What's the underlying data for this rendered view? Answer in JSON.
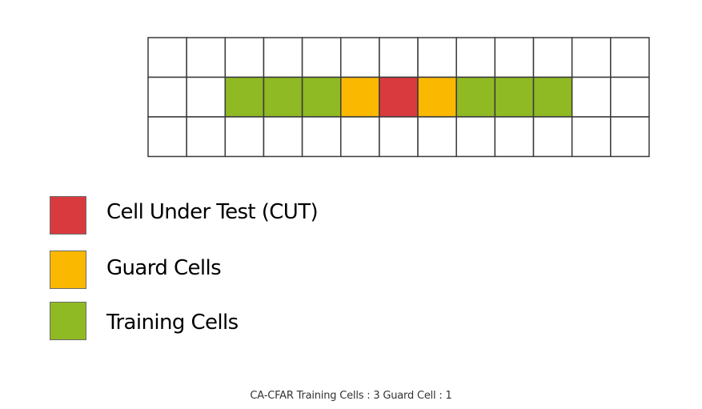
{
  "colors": {
    "cut": "#d93a3e",
    "guard": "#fbb800",
    "training": "#8fba23",
    "empty": "#ffffff",
    "gridline": "#3a3a3a"
  },
  "grid": {
    "columns": 13,
    "rows": 3,
    "highlight_row": 2,
    "highlight_cells": [
      {
        "column": 3,
        "kind": "training"
      },
      {
        "column": 4,
        "kind": "training"
      },
      {
        "column": 5,
        "kind": "training"
      },
      {
        "column": 6,
        "kind": "guard"
      },
      {
        "column": 7,
        "kind": "cut"
      },
      {
        "column": 8,
        "kind": "guard"
      },
      {
        "column": 9,
        "kind": "training"
      },
      {
        "column": 10,
        "kind": "training"
      },
      {
        "column": 11,
        "kind": "training"
      }
    ]
  },
  "legend": [
    {
      "kind": "cut",
      "label": "Cell Under Test (CUT)"
    },
    {
      "kind": "guard",
      "label": "Guard Cells"
    },
    {
      "kind": "training",
      "label": "Training Cells"
    }
  ],
  "caption": "CA-CFAR Training Cells : 3 Guard Cell : 1"
}
